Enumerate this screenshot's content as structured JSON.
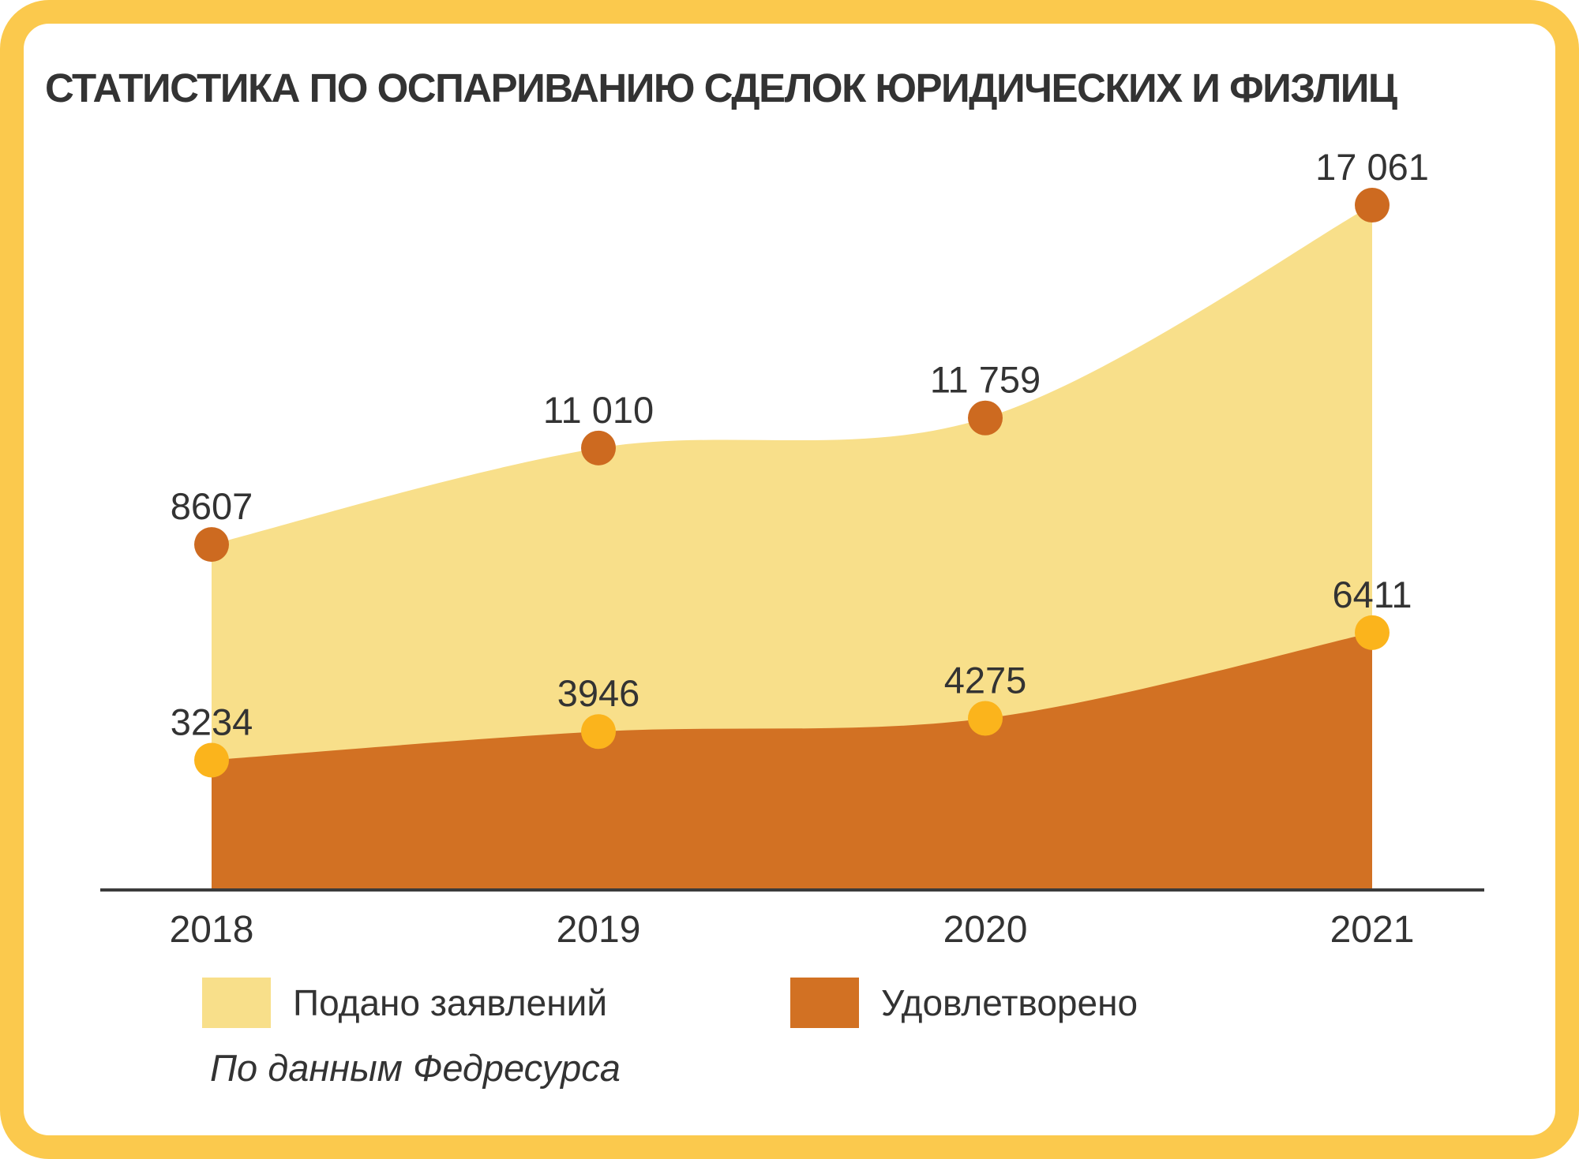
{
  "frame": {
    "border_color": "#FBC94D",
    "background_color": "#FFFFFF"
  },
  "title": "СТАТИСТИКА ПО ОСПАРИВАНИЮ СДЕЛОК ЮРИДИЧЕСКИХ И ФИЗЛИЦ",
  "source_note": "По данным Федресурса",
  "legend": {
    "items": [
      {
        "label": "Подано заявлений",
        "color": "#F8DF8A"
      },
      {
        "label": "Удовлетворено",
        "color": "#D27123"
      }
    ]
  },
  "chart_data": {
    "type": "area",
    "title": "СТАТИСТИКА ПО ОСПАРИВАНИЮ СДЕЛОК ЮРИДИЧЕСКИХ И ФИЗЛИЦ",
    "categories": [
      "2018",
      "2019",
      "2020",
      "2021"
    ],
    "series": [
      {
        "name": "Подано заявлений",
        "values": [
          8607,
          11010,
          11759,
          17061
        ],
        "labels": [
          "8607",
          "11 010",
          "11 759",
          "17 061"
        ],
        "area_color": "#F8DF8A",
        "marker_color": "#CD6A20"
      },
      {
        "name": "Удовлетворено",
        "values": [
          3234,
          3946,
          4275,
          6411
        ],
        "labels": [
          "3234",
          "3946",
          "4275",
          "6411"
        ],
        "area_color": "#D27123",
        "marker_color": "#FBB41C"
      }
    ],
    "xlabel": "",
    "ylabel": "",
    "ylim": [
      0,
      17061
    ],
    "grid": false,
    "legend_position": "bottom",
    "axis_color": "#3B3B3B",
    "label_color": "#333333",
    "source": "По данным Федресурса"
  }
}
